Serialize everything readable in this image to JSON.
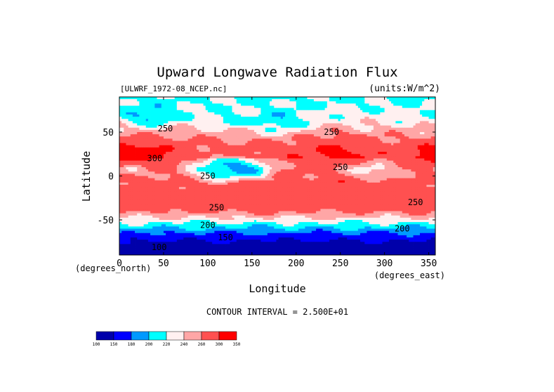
{
  "chart_data": {
    "type": "heatmap",
    "title": "Upward Longwave Radiation Flux",
    "subtitle_left": "[ULWRF_1972-08_NCEP.nc]",
    "subtitle_right": "(units:W/m^2)",
    "xlabel": "Longitude",
    "ylabel": "Latitude",
    "x_unit_label": "(degrees_east)",
    "y_unit_label": "(degrees_north)",
    "xlim": [
      0,
      357.5
    ],
    "ylim": [
      -90,
      90
    ],
    "x_ticks": [
      0,
      50,
      100,
      150,
      200,
      250,
      300,
      350
    ],
    "y_ticks": [
      -50,
      0,
      50
    ],
    "contour_interval_text": "CONTOUR INTERVAL = 2.500E+01",
    "contour_labels": [
      {
        "text": "250",
        "lon": 52,
        "lat": 54
      },
      {
        "text": "300",
        "lon": 40,
        "lat": 20
      },
      {
        "text": "250",
        "lon": 240,
        "lat": 50
      },
      {
        "text": "250",
        "lon": 250,
        "lat": 10
      },
      {
        "text": "250",
        "lon": 100,
        "lat": 0
      },
      {
        "text": "250",
        "lon": 110,
        "lat": -36
      },
      {
        "text": "250",
        "lon": 335,
        "lat": -30
      },
      {
        "text": "200",
        "lon": 100,
        "lat": -56
      },
      {
        "text": "200",
        "lon": 320,
        "lat": -60
      },
      {
        "text": "150",
        "lon": 120,
        "lat": -70
      },
      {
        "text": "100",
        "lon": 45,
        "lat": -81
      }
    ],
    "legend": {
      "placement": "bottom-left",
      "levels": [
        100,
        150,
        180,
        200,
        220,
        240,
        260,
        300,
        350
      ],
      "colors": [
        "#0000aa",
        "#0000ff",
        "#0099ff",
        "#00ffff",
        "#fff0f0",
        "#ffa6a6",
        "#ff5050",
        "#ff0000"
      ]
    }
  }
}
